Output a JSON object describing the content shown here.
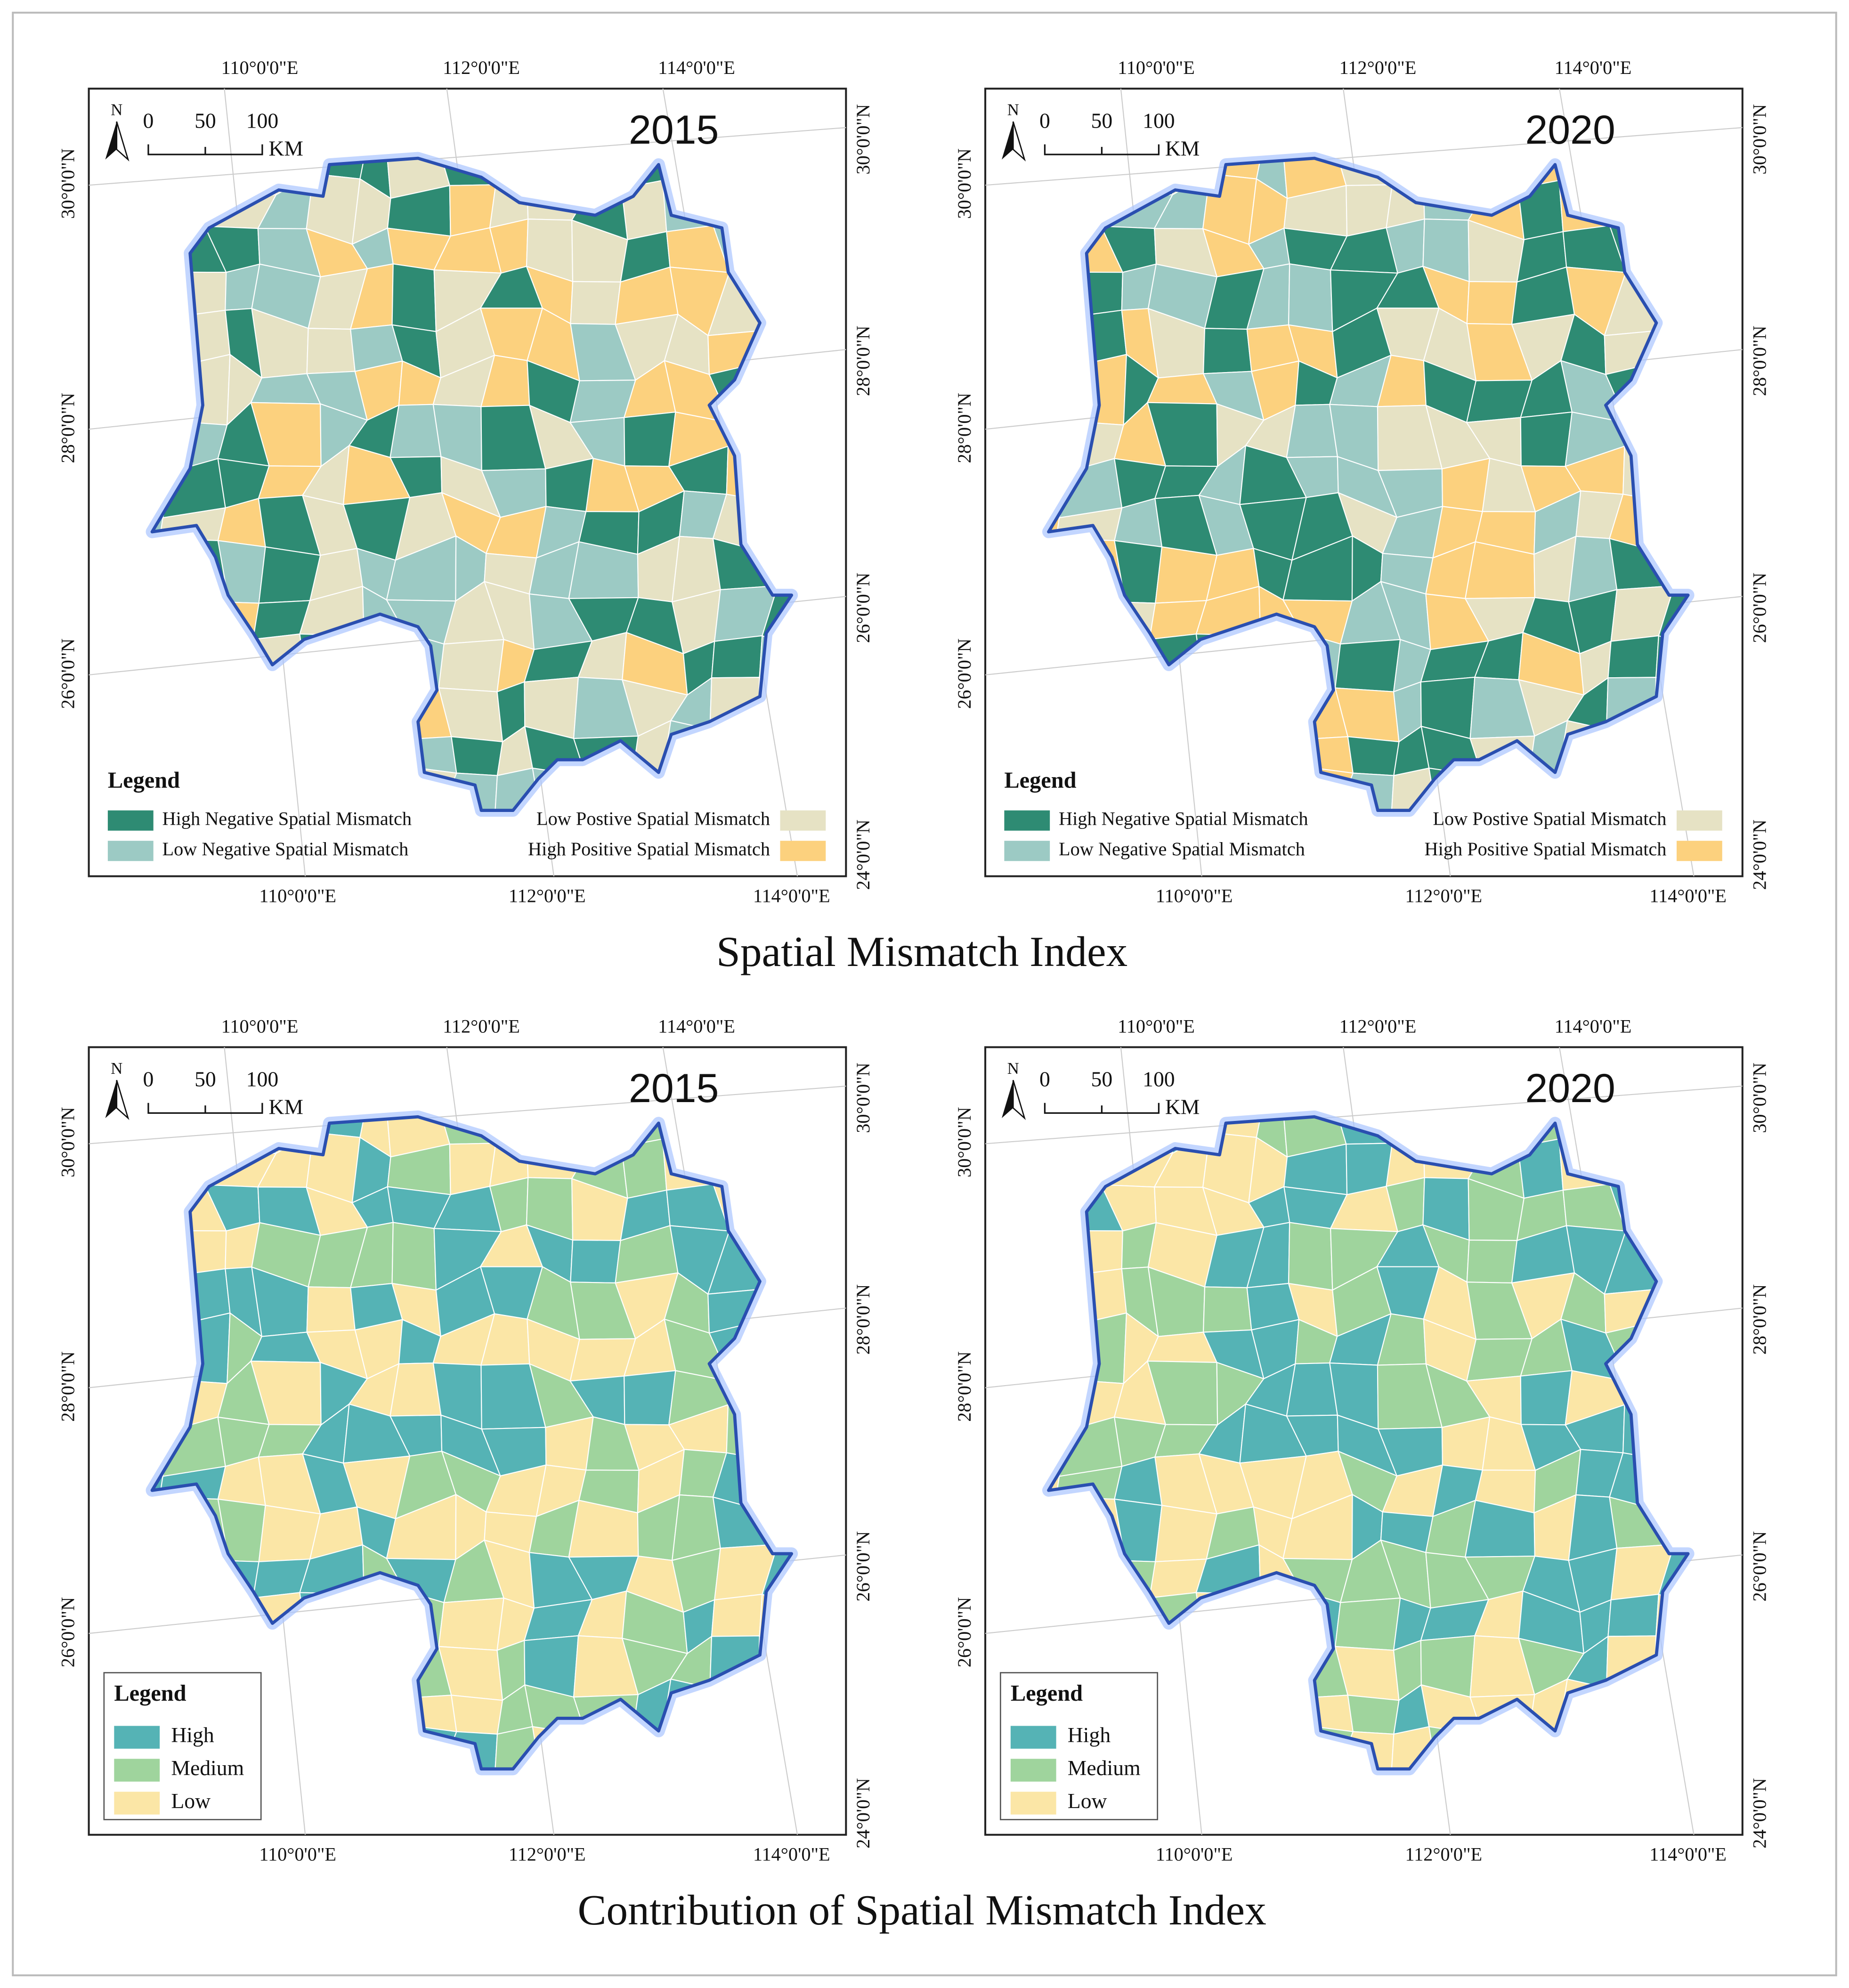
{
  "figure": {
    "frame_labels": {
      "lon": [
        "110°0'0\"E",
        "112°0'0\"E",
        "114°0'0\"E"
      ],
      "lat": [
        "30°0'0\"N",
        "28°0'0\"N",
        "26°0'0\"N",
        "24°0'0\"N"
      ],
      "north": "N",
      "scale": [
        "0",
        "50",
        "100"
      ],
      "scale_unit": "KM",
      "legend_title": "Legend"
    },
    "sections": [
      {
        "title": "Spatial Mismatch Index",
        "years": [
          "2015",
          "2020"
        ],
        "legend": [
          {
            "label": "High Negative Spatial Mismatch",
            "color": "#2e8b73"
          },
          {
            "label": "Low Negative Spatial Mismatch",
            "color": "#9ccac4"
          },
          {
            "label": "Low Postive Spatial Mismatch",
            "color": "#e6e2c4"
          },
          {
            "label": "High Positive Spatial Mismatch",
            "color": "#fcd17e"
          }
        ]
      },
      {
        "title": "Contribution of Spatial Mismatch Index",
        "years": [
          "2015",
          "2020"
        ],
        "legend": [
          {
            "label": "High",
            "color": "#55b3b5"
          },
          {
            "label": "Medium",
            "color": "#9fd49d"
          },
          {
            "label": "Low",
            "color": "#fbe6a6"
          }
        ]
      }
    ]
  }
}
